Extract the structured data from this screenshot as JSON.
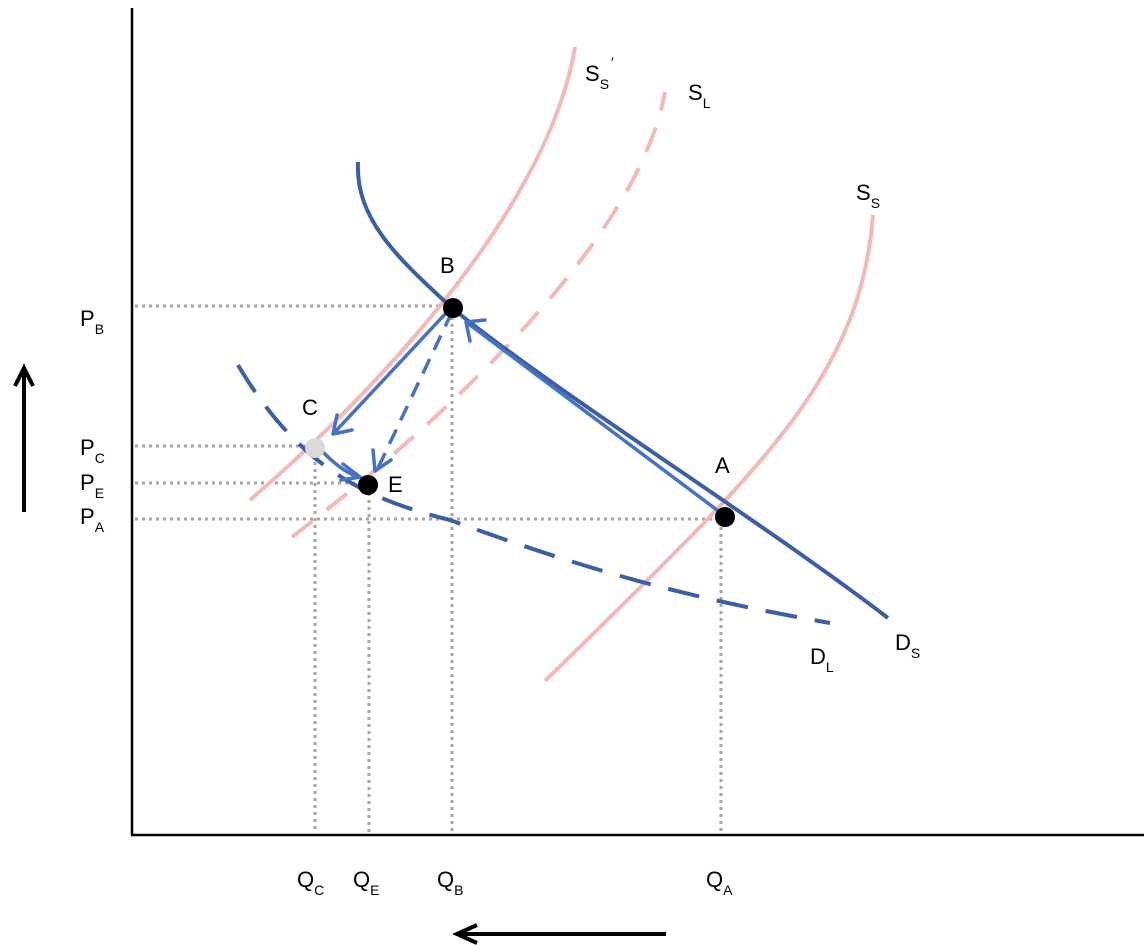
{
  "diagram": {
    "curves": {
      "supply_short_shifted": "S",
      "supply_short_shifted_sub": "S",
      "supply_short_shifted_prime": "′",
      "supply_long": "S",
      "supply_long_sub": "L",
      "supply_short": "S",
      "supply_short_sub": "S",
      "demand_short": "D",
      "demand_short_sub": "S",
      "demand_long": "D",
      "demand_long_sub": "L"
    },
    "points": {
      "a": "A",
      "b": "B",
      "c": "C",
      "e": "E"
    },
    "price_labels": [
      {
        "main": "P",
        "sub": "B"
      },
      {
        "main": "P",
        "sub": "C"
      },
      {
        "main": "P",
        "sub": "E"
      },
      {
        "main": "P",
        "sub": "A"
      }
    ],
    "quantity_labels": [
      {
        "main": "Q",
        "sub": "C"
      },
      {
        "main": "Q",
        "sub": "E"
      },
      {
        "main": "Q",
        "sub": "B"
      },
      {
        "main": "Q",
        "sub": "A"
      }
    ],
    "colors": {
      "supply": "#f4b8b8",
      "demand": "#3b5ea8",
      "arrows": "#4472c4",
      "point": "#000000",
      "point_c": "#d9d9d9",
      "guides": "#a6a6a6"
    }
  }
}
